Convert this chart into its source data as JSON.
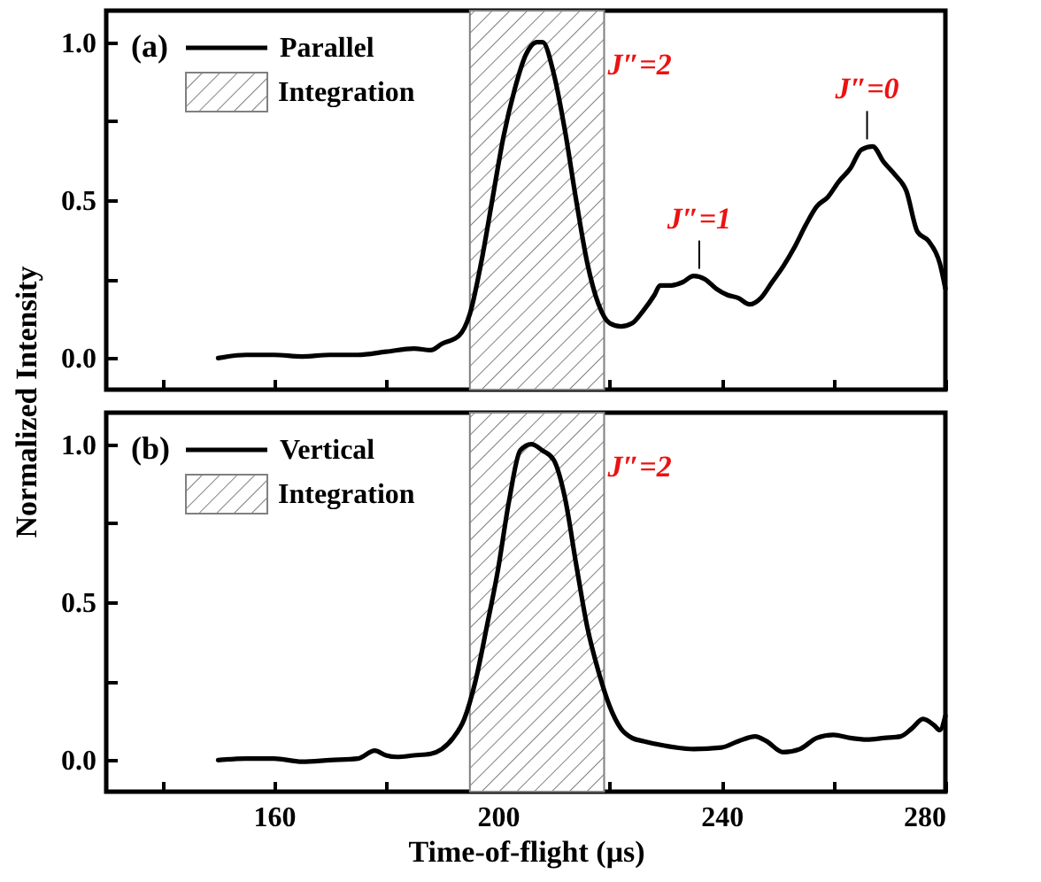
{
  "chart_data": [
    {
      "type": "line",
      "title": "(a)",
      "ylabel": "Normalized Intensity",
      "legend": "top left",
      "tick_labels": "y",
      "x": [
        150,
        155,
        160,
        165,
        170,
        175,
        180,
        185,
        188,
        190,
        193,
        195,
        197,
        199,
        201,
        203,
        205,
        207,
        208,
        210,
        212,
        214,
        216,
        218,
        220,
        222,
        224,
        226,
        228,
        229,
        231,
        233,
        235,
        237,
        239,
        241,
        243,
        245,
        247,
        249,
        251,
        253,
        255,
        257,
        259,
        261,
        263,
        265,
        267,
        269,
        271,
        273,
        275,
        277,
        279,
        280
      ],
      "series": [
        {
          "name": "Parallel",
          "color": "#000000",
          "values": [
            0.0,
            0.01,
            0.01,
            0.005,
            0.01,
            0.01,
            0.02,
            0.03,
            0.025,
            0.045,
            0.07,
            0.14,
            0.3,
            0.5,
            0.7,
            0.85,
            0.96,
            1.0,
            1.0,
            0.9,
            0.72,
            0.5,
            0.3,
            0.17,
            0.11,
            0.1,
            0.11,
            0.15,
            0.2,
            0.23,
            0.23,
            0.24,
            0.26,
            0.25,
            0.22,
            0.2,
            0.19,
            0.17,
            0.19,
            0.24,
            0.29,
            0.35,
            0.42,
            0.48,
            0.51,
            0.56,
            0.6,
            0.66,
            0.67,
            0.62,
            0.58,
            0.53,
            0.4,
            0.37,
            0.3,
            0.22
          ]
        }
      ],
      "xlim": [
        130,
        280
      ],
      "xticks": [
        {
          "value": 140,
          "label": null
        },
        160,
        {
          "value": 180,
          "label": null
        },
        200,
        {
          "value": 220,
          "label": null
        },
        240,
        {
          "value": 260,
          "label": null
        },
        280
      ],
      "ylim": [
        -0.1,
        1.1
      ],
      "yticks": [
        {
          "value": 0,
          "label": "0.0"
        },
        {
          "value": 0.25,
          "label": null
        },
        0.5,
        {
          "value": 0.75,
          "label": null
        },
        {
          "value": 1,
          "label": "1.0"
        }
      ],
      "bands": [
        {
          "axis": "x",
          "from": 195,
          "to": 219,
          "label": "Integration",
          "color": "#808080"
        }
      ],
      "annotations": [
        "J″=2",
        {
          "text": "J″=1",
          "x": 236,
          "y": 0.26
        },
        {
          "text": "J″=0",
          "x": 266,
          "y": 0.67
        }
      ]
    },
    {
      "type": "line",
      "title": "(b)",
      "xlabel": "Time-of-flight (μs)",
      "legend": "top left",
      "x": [
        150,
        155,
        160,
        165,
        170,
        175,
        178,
        180,
        182,
        185,
        188,
        190,
        192,
        194,
        196,
        198,
        200,
        202,
        204,
        206,
        208,
        210,
        212,
        214,
        216,
        218,
        220,
        222,
        224,
        226,
        230,
        235,
        240,
        243,
        246,
        248,
        251,
        254,
        257,
        260,
        263,
        266,
        269,
        272,
        274,
        276,
        278,
        279,
        280
      ],
      "series": [
        {
          "name": "Vertical",
          "color": "#000000",
          "values": [
            0.0,
            0.005,
            0.005,
            -0.005,
            0.0,
            0.005,
            0.03,
            0.015,
            0.01,
            0.015,
            0.02,
            0.035,
            0.07,
            0.13,
            0.25,
            0.42,
            0.6,
            0.82,
            0.98,
            1.0,
            0.98,
            0.95,
            0.83,
            0.62,
            0.42,
            0.28,
            0.17,
            0.1,
            0.07,
            0.06,
            0.045,
            0.035,
            0.04,
            0.06,
            0.075,
            0.06,
            0.025,
            0.035,
            0.07,
            0.08,
            0.07,
            0.065,
            0.07,
            0.075,
            0.1,
            0.13,
            0.11,
            0.095,
            0.14
          ]
        }
      ],
      "xlim": [
        130,
        280
      ],
      "xticks": [
        {
          "value": 140,
          "label": null
        },
        160,
        {
          "value": 180,
          "label": null
        },
        200,
        {
          "value": 220,
          "label": null
        },
        240,
        {
          "value": 260,
          "label": null
        },
        280
      ],
      "ylim": [
        -0.1,
        1.1
      ],
      "yticks": [
        {
          "value": 0,
          "label": "0.0"
        },
        {
          "value": 0.25,
          "label": null
        },
        0.5,
        {
          "value": 0.75,
          "label": null
        },
        {
          "value": 1,
          "label": "1.0"
        }
      ],
      "bands": [
        {
          "axis": "x",
          "from": 195,
          "to": 219,
          "label": "Integration",
          "color": "#808080"
        }
      ],
      "annotations": [
        "J″=2"
      ]
    }
  ]
}
